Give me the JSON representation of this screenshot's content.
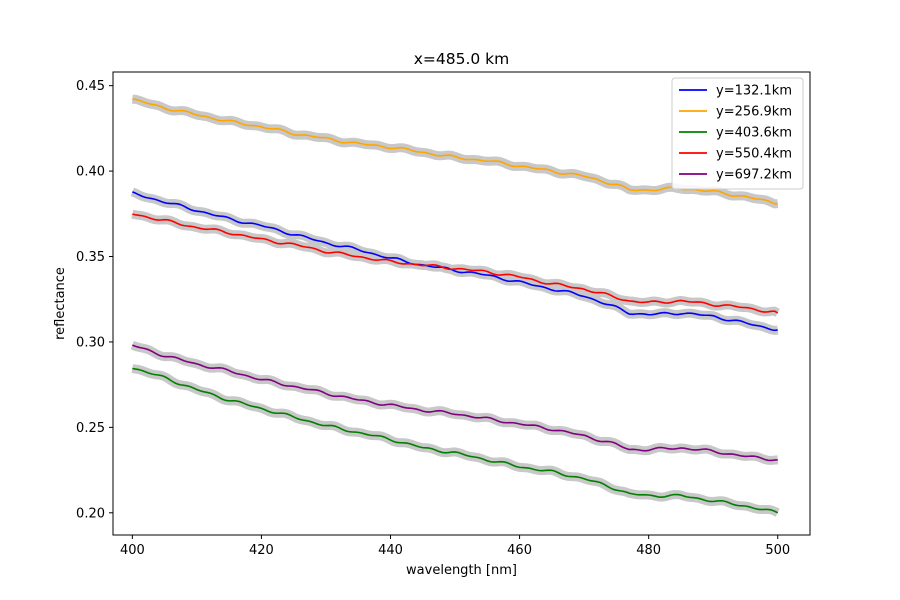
{
  "chart_data": {
    "type": "line",
    "title": "x=485.0 km",
    "xlabel": "wavelength [nm]",
    "ylabel": "reflectance",
    "xlim": [
      397,
      505
    ],
    "ylim": [
      0.187,
      0.458
    ],
    "xticks": [
      400,
      420,
      440,
      460,
      480,
      500
    ],
    "yticks": [
      0.2,
      0.25,
      0.3,
      0.35,
      0.4,
      0.45
    ],
    "xtick_labels": [
      "400",
      "420",
      "440",
      "460",
      "480",
      "500"
    ],
    "ytick_labels": [
      "0.20",
      "0.25",
      "0.30",
      "0.35",
      "0.40",
      "0.45"
    ],
    "grid": false,
    "legend_position": "top-right",
    "uncertainty_band_color": "#c8c8c8",
    "x": [
      400,
      405,
      410,
      415,
      420,
      425,
      430,
      435,
      440,
      445,
      450,
      455,
      460,
      465,
      470,
      475,
      477,
      480,
      485,
      490,
      495,
      500
    ],
    "series": [
      {
        "name": "y=132.1km",
        "color": "#0000ff",
        "values": [
          0.387,
          0.382,
          0.377,
          0.372,
          0.368,
          0.363,
          0.358,
          0.354,
          0.349,
          0.345,
          0.342,
          0.339,
          0.335,
          0.331,
          0.327,
          0.32,
          0.317,
          0.316,
          0.317,
          0.315,
          0.311,
          0.307
        ]
      },
      {
        "name": "y=256.9km",
        "color": "#ffa500",
        "values": [
          0.442,
          0.437,
          0.433,
          0.429,
          0.426,
          0.422,
          0.419,
          0.416,
          0.414,
          0.411,
          0.408,
          0.406,
          0.403,
          0.4,
          0.397,
          0.392,
          0.389,
          0.389,
          0.39,
          0.388,
          0.385,
          0.381
        ]
      },
      {
        "name": "y=403.6km",
        "color": "#008000",
        "values": [
          0.285,
          0.279,
          0.272,
          0.266,
          0.261,
          0.256,
          0.251,
          0.247,
          0.243,
          0.238,
          0.235,
          0.231,
          0.227,
          0.224,
          0.22,
          0.214,
          0.211,
          0.21,
          0.21,
          0.207,
          0.204,
          0.2
        ]
      },
      {
        "name": "y=550.4km",
        "color": "#ff0000",
        "values": [
          0.375,
          0.371,
          0.367,
          0.364,
          0.36,
          0.357,
          0.353,
          0.35,
          0.347,
          0.345,
          0.343,
          0.341,
          0.338,
          0.334,
          0.331,
          0.326,
          0.324,
          0.323,
          0.324,
          0.322,
          0.32,
          0.317
        ]
      },
      {
        "name": "y=697.2km",
        "color": "#800080",
        "values": [
          0.298,
          0.292,
          0.287,
          0.283,
          0.278,
          0.274,
          0.27,
          0.266,
          0.263,
          0.26,
          0.258,
          0.255,
          0.252,
          0.249,
          0.245,
          0.24,
          0.237,
          0.237,
          0.238,
          0.236,
          0.233,
          0.231
        ]
      }
    ]
  }
}
